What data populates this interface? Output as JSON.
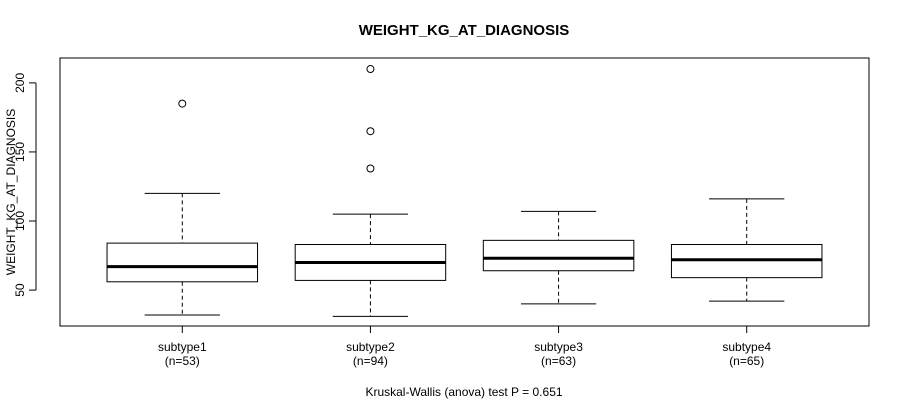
{
  "chart_data": {
    "type": "boxplot",
    "title": "WEIGHT_KG_AT_DIAGNOSIS",
    "ylabel": "WEIGHT_KG_AT_DIAGNOSIS",
    "xlabel": "",
    "ylim": [
      24,
      218
    ],
    "yticks": [
      50,
      100,
      150,
      200
    ],
    "grid": false,
    "categories": [
      "subtype1",
      "subtype2",
      "subtype3",
      "subtype4"
    ],
    "counts": [
      "(n=53)",
      "(n=94)",
      "(n=63)",
      "(n=65)"
    ],
    "series": [
      {
        "name": "subtype1",
        "whisker_low": 32,
        "q1": 56,
        "median": 67,
        "q3": 84,
        "whisker_high": 120,
        "outliers": [
          185
        ]
      },
      {
        "name": "subtype2",
        "whisker_low": 31,
        "q1": 57,
        "median": 70,
        "q3": 83,
        "whisker_high": 105,
        "outliers": [
          210,
          165,
          138
        ]
      },
      {
        "name": "subtype3",
        "whisker_low": 40,
        "q1": 64,
        "median": 73,
        "q3": 86,
        "whisker_high": 107,
        "outliers": []
      },
      {
        "name": "subtype4",
        "whisker_low": 42,
        "q1": 59,
        "median": 72,
        "q3": 83,
        "whisker_high": 116,
        "outliers": []
      }
    ],
    "footnote": "Kruskal-Wallis (anova) test P = 0.651"
  }
}
